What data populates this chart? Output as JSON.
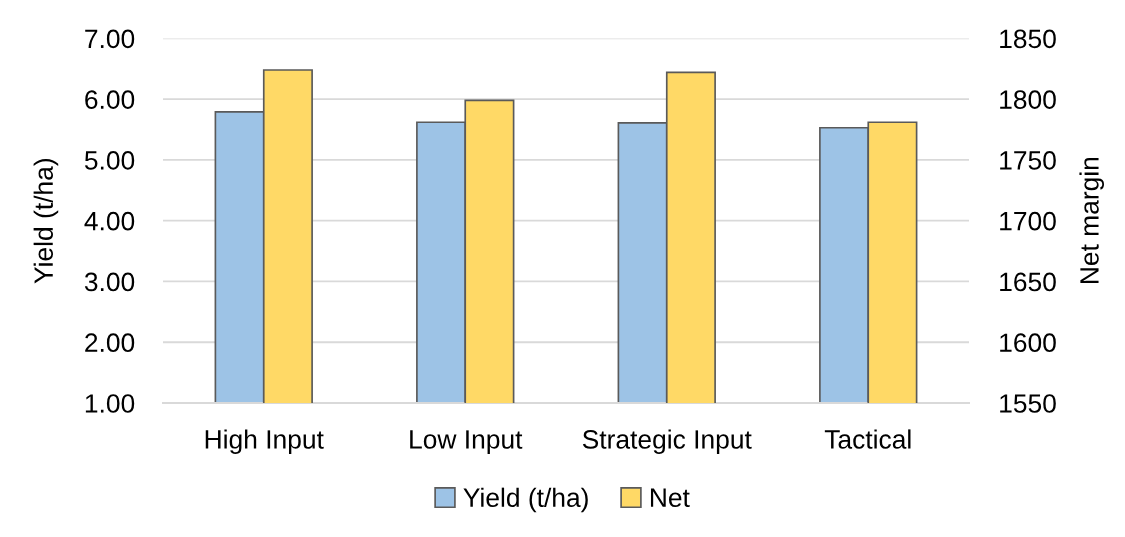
{
  "chart_data": {
    "type": "bar",
    "categories": [
      "High Input",
      "Low Input",
      "Strategic Input",
      "Tactical"
    ],
    "series": [
      {
        "name": "Yield (t/ha)",
        "color": "#9dc3e6",
        "values": [
          5.79,
          5.62,
          5.61,
          5.53
        ]
      },
      {
        "name": "Net",
        "color": "#ffd966",
        "values": [
          1824,
          1799,
          1822,
          1781
        ],
        "axis": "y2"
      }
    ],
    "ylabel": "Yield (t/ha)",
    "y2label": "Net margin",
    "ylim": [
      1,
      7
    ],
    "yticks": [
      {
        "value": 1,
        "label": "1.00"
      },
      {
        "value": 2,
        "label": "2.00"
      },
      {
        "value": 3,
        "label": "3.00"
      },
      {
        "value": 4,
        "label": "4.00"
      },
      {
        "value": 5,
        "label": "5.00"
      },
      {
        "value": 6,
        "label": "6.00"
      },
      {
        "value": 7,
        "label": "7.00"
      }
    ],
    "y2lim": [
      1550,
      1850
    ],
    "y2ticks": [
      1550,
      1600,
      1650,
      1700,
      1750,
      1800,
      1850
    ],
    "grid": "y",
    "legend": "bottom"
  }
}
